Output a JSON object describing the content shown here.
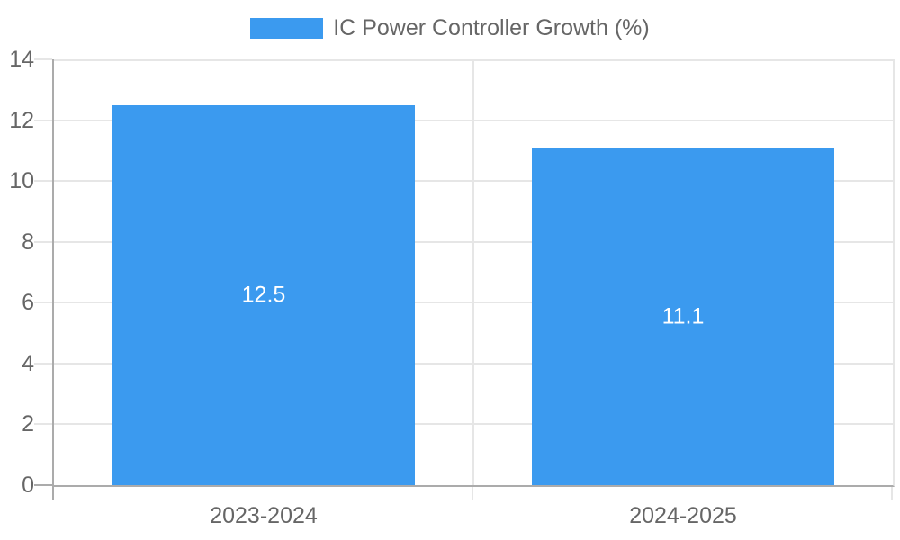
{
  "chart_data": {
    "type": "bar",
    "title": "",
    "categories": [
      "2023-2024",
      "2024-2025"
    ],
    "series": [
      {
        "name": "IC Power Controller Growth (%)",
        "values": [
          12.5,
          11.1
        ]
      }
    ],
    "value_labels": [
      "12.5",
      "11.1"
    ],
    "xlabel": "",
    "ylabel": "",
    "ylim": [
      0,
      14
    ],
    "yticks": [
      0,
      2,
      4,
      6,
      8,
      10,
      12,
      14
    ],
    "grid": true,
    "legend_position": "top"
  },
  "colors": {
    "bar": "#3B9AEF",
    "grid": "#E6E6E6",
    "axis": "#ABABAB",
    "text": "#666666",
    "bar_label": "#FFFFFF",
    "background": "#FFFFFF"
  }
}
